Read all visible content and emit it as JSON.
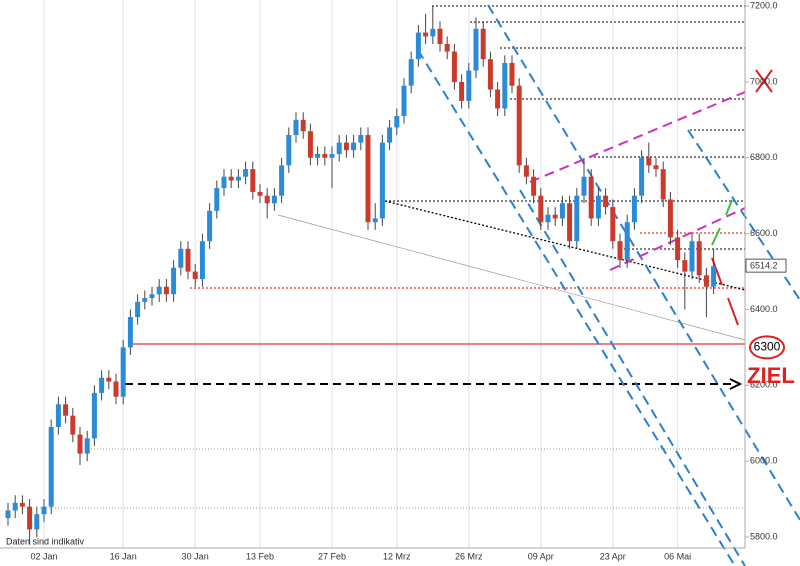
{
  "chart_data": {
    "type": "candlestick",
    "categories": [
      null,
      null,
      null,
      null,
      null,
      "02 Jan",
      null,
      null,
      null,
      null,
      null,
      null,
      null,
      null,
      null,
      null,
      "16 Jan",
      null,
      null,
      null,
      null,
      null,
      null,
      null,
      null,
      null,
      "30 Jan",
      null,
      null,
      null,
      null,
      null,
      null,
      null,
      null,
      "13 Feb",
      null,
      null,
      null,
      null,
      null,
      null,
      null,
      null,
      null,
      "27 Feb",
      null,
      null,
      null,
      null,
      null,
      null,
      null,
      null,
      "12 Mrz",
      null,
      null,
      null,
      null,
      null,
      null,
      null,
      null,
      null,
      "26 Mrz",
      null,
      null,
      null,
      null,
      null,
      null,
      null,
      null,
      null,
      "09 Apr",
      null,
      null,
      null,
      null,
      null,
      null,
      null,
      null,
      null,
      "23 Apr",
      null,
      null,
      null,
      null,
      null,
      null,
      null,
      null,
      "06 Mai",
      null,
      null,
      null,
      null,
      null
    ],
    "open": [
      5850,
      5870,
      5890,
      5880,
      5820,
      5860,
      5880,
      6090,
      6150,
      6120,
      6070,
      6020,
      6060,
      6180,
      6220,
      6210,
      6170,
      6300,
      6380,
      6420,
      6430,
      6440,
      6460,
      6440,
      6510,
      6560,
      6500,
      6480,
      6580,
      6660,
      6720,
      6750,
      6740,
      6750,
      6770,
      6710,
      6700,
      6680,
      6700,
      6780,
      6860,
      6900,
      6870,
      6800,
      6810,
      6800,
      6810,
      6840,
      6820,
      6840,
      6860,
      6630,
      6640,
      6840,
      6880,
      6910,
      6990,
      7060,
      7130,
      7120,
      7140,
      7100,
      7080,
      7000,
      6950,
      7030,
      7140,
      7060,
      6980,
      6930,
      7050,
      6990,
      6780,
      6750,
      6700,
      6630,
      6650,
      6640,
      6680,
      6580,
      6700,
      6750,
      6640,
      6700,
      6670,
      6580,
      6530,
      6630,
      6700,
      6800,
      6780,
      6770,
      6690,
      6590,
      6530,
      6500,
      6580,
      6490,
      6460
    ],
    "high": [
      5890,
      5910,
      5910,
      5900,
      5880,
      5900,
      6110,
      6170,
      6170,
      6140,
      6090,
      6080,
      6200,
      6240,
      6240,
      6230,
      6320,
      6400,
      6440,
      6450,
      6460,
      6480,
      6480,
      6530,
      6580,
      6580,
      6520,
      6600,
      6680,
      6740,
      6770,
      6770,
      6770,
      6790,
      6790,
      6730,
      6720,
      6720,
      6800,
      6880,
      6920,
      6920,
      6890,
      6830,
      6830,
      6830,
      6860,
      6860,
      6860,
      6880,
      6880,
      6680,
      6860,
      6900,
      6930,
      7010,
      7080,
      7150,
      7180,
      7200,
      7160,
      7120,
      7100,
      7020,
      7050,
      7170,
      7160,
      7080,
      7000,
      7070,
      7070,
      7010,
      6800,
      6770,
      6720,
      6670,
      6670,
      6700,
      6700,
      6720,
      6800,
      6770,
      6720,
      6720,
      6690,
      6600,
      6650,
      6720,
      6820,
      6840,
      6800,
      6790,
      6710,
      6610,
      6550,
      6600,
      6600,
      6510,
      6560
    ],
    "low": [
      5830,
      5850,
      5860,
      5780,
      5800,
      5840,
      5860,
      6070,
      6100,
      6050,
      5990,
      6000,
      6040,
      6160,
      6190,
      6150,
      6150,
      6280,
      6360,
      6400,
      6410,
      6420,
      6420,
      6420,
      6490,
      6480,
      6460,
      6460,
      6560,
      6640,
      6700,
      6720,
      6720,
      6730,
      6690,
      6680,
      6640,
      6660,
      6680,
      6760,
      6840,
      6850,
      6780,
      6780,
      6780,
      6720,
      6790,
      6800,
      6800,
      6820,
      6610,
      6610,
      6620,
      6820,
      6860,
      6890,
      6970,
      7040,
      7100,
      7100,
      7080,
      7060,
      6980,
      6930,
      6930,
      7010,
      7040,
      6960,
      6910,
      6910,
      6970,
      6760,
      6730,
      6680,
      6610,
      6610,
      6620,
      6620,
      6560,
      6560,
      6680,
      6620,
      6620,
      6650,
      6560,
      6510,
      6510,
      6610,
      6680,
      6760,
      6750,
      6670,
      6570,
      6510,
      6400,
      6480,
      6470,
      6380,
      6440
    ],
    "close": [
      5870,
      5890,
      5880,
      5820,
      5860,
      5880,
      6090,
      6150,
      6120,
      6070,
      6020,
      6060,
      6180,
      6220,
      6210,
      6170,
      6300,
      6380,
      6420,
      6430,
      6440,
      6460,
      6440,
      6510,
      6560,
      6500,
      6480,
      6580,
      6660,
      6720,
      6750,
      6740,
      6750,
      6770,
      6710,
      6700,
      6680,
      6700,
      6780,
      6860,
      6900,
      6870,
      6800,
      6810,
      6800,
      6810,
      6840,
      6820,
      6840,
      6860,
      6630,
      6640,
      6840,
      6880,
      6910,
      6990,
      7060,
      7130,
      7120,
      7140,
      7100,
      7080,
      7000,
      6950,
      7030,
      7140,
      7060,
      6980,
      6930,
      7050,
      6990,
      6780,
      6750,
      6700,
      6630,
      6650,
      6640,
      6680,
      6580,
      6700,
      6750,
      6640,
      6700,
      6670,
      6580,
      6530,
      6630,
      6700,
      6800,
      6780,
      6770,
      6690,
      6590,
      6530,
      6500,
      6580,
      6490,
      6460,
      6514.2
    ],
    "up_color": "#2a8cd8",
    "down_color": "#cc3a2e",
    "ylim": [
      5771,
      7216
    ],
    "yticks": [
      {
        "value": 5800,
        "label": "5800.0"
      },
      {
        "value": 6000,
        "label": "6000.0"
      },
      {
        "value": 6200,
        "label": "6200.0"
      },
      {
        "value": 6400,
        "label": "6400.0"
      },
      {
        "value": 6600,
        "label": "6600.0"
      },
      {
        "value": 6800,
        "label": "6800.0"
      },
      {
        "value": 7000,
        "label": "7000.0"
      },
      {
        "value": 7200,
        "label": "7200.0"
      }
    ],
    "last_price": 6514.2,
    "target": 6300,
    "target_text": "ZIEL",
    "note": "Daten sind indikativ"
  }
}
